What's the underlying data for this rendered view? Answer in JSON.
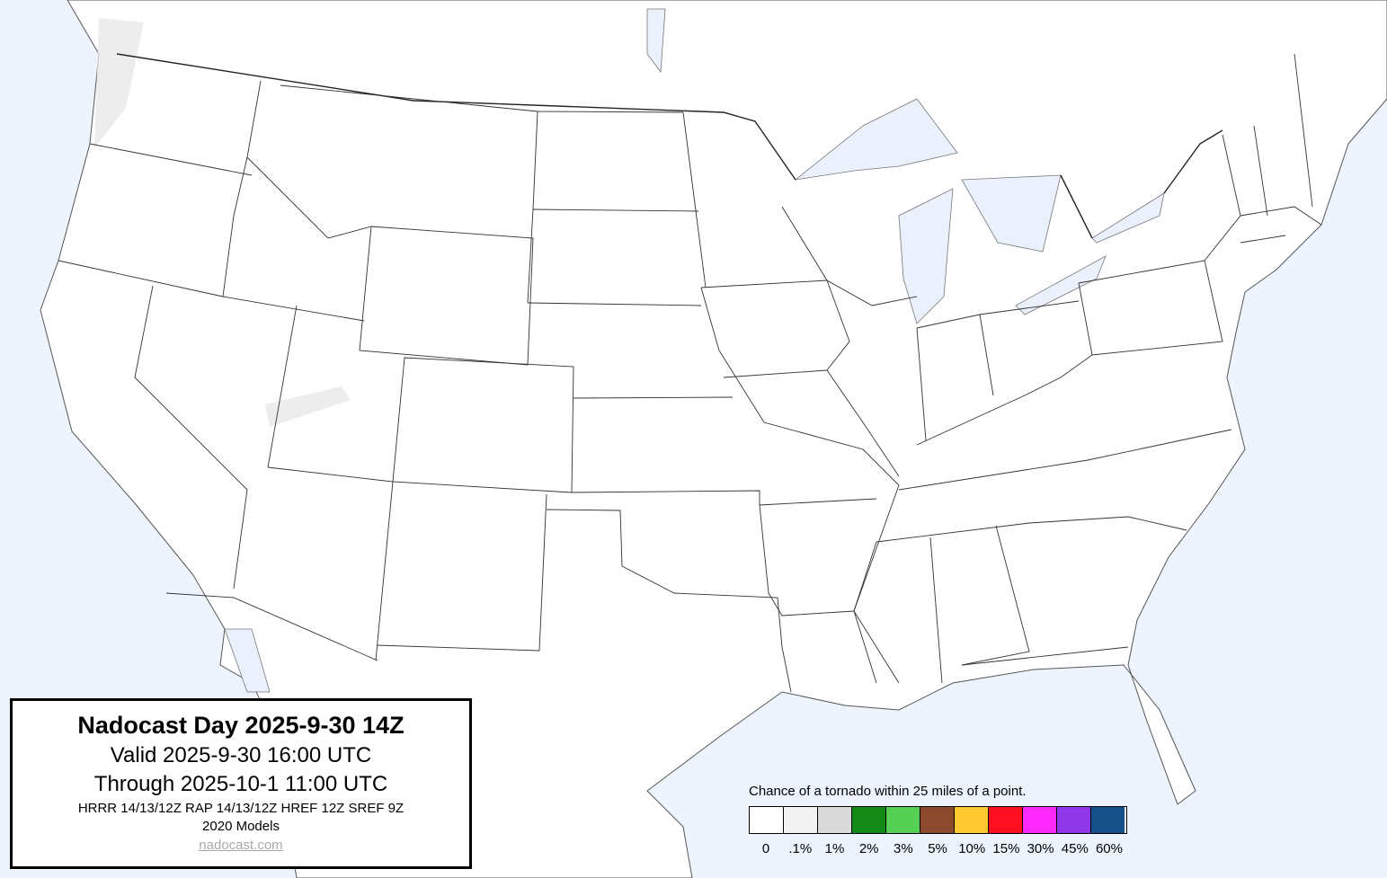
{
  "info_box": {
    "title": "Nadocast Day 2025-9-30 14Z",
    "valid": "Valid 2025-9-30 16:00 UTC",
    "through": "Through 2025-10-1 11:00 UTC",
    "models": "HRRR 14/13/12Z RAP 14/13/12Z HREF 12Z SREF 9Z",
    "model_version": "2020 Models",
    "link": "nadocast.com"
  },
  "legend": {
    "caption": "Chance of a tornado within 25 miles of a point.",
    "bins": [
      {
        "label": "0",
        "color": "#ffffff"
      },
      {
        "label": ".1%",
        "color": "#f3f3f3"
      },
      {
        "label": "1%",
        "color": "#dadada"
      },
      {
        "label": "2%",
        "color": "#138a18"
      },
      {
        "label": "3%",
        "color": "#55d055"
      },
      {
        "label": "5%",
        "color": "#8b4a2b"
      },
      {
        "label": "10%",
        "color": "#ffc830"
      },
      {
        "label": "15%",
        "color": "#ff1020"
      },
      {
        "label": "30%",
        "color": "#ff2aff"
      },
      {
        "label": "45%",
        "color": "#9038e8"
      },
      {
        "label": "60%",
        "color": "#155088"
      }
    ]
  },
  "map": {
    "water_color": "#eef4fe",
    "land_color": "#ffffff"
  }
}
